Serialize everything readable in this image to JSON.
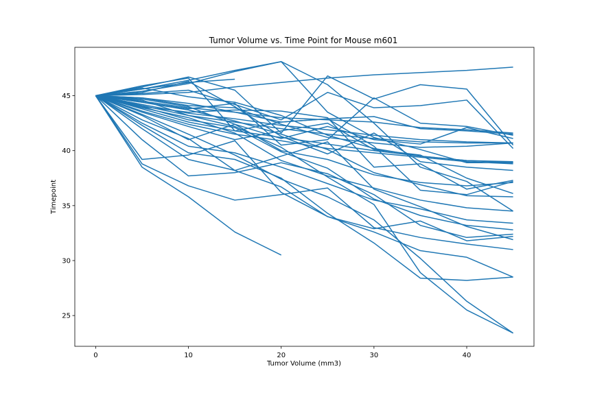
{
  "chart_data": {
    "type": "line",
    "title": "Tumor Volume vs. Time Point for Mouse m601",
    "xlabel": "Tumor Volume (mm3)",
    "ylabel": "Timepoint",
    "xlim": [
      -2.25,
      47.25
    ],
    "ylim": [
      22.2,
      49.4
    ],
    "xticks": [
      0,
      10,
      20,
      30,
      40
    ],
    "yticks": [
      25,
      30,
      35,
      40,
      45
    ],
    "grid": false,
    "legend": "none",
    "line_color": "#1f77b4",
    "series": [
      {
        "x": [
          0,
          5,
          10,
          15,
          20,
          25,
          30,
          35,
          40,
          45
        ],
        "y": [
          45,
          45.6,
          46.4,
          47.3,
          48.1,
          43.5,
          41.2,
          40.1,
          38.9,
          38.9
        ]
      },
      {
        "x": [
          0,
          5,
          10,
          15,
          20,
          25,
          30,
          35,
          40,
          45
        ],
        "y": [
          45,
          45.4,
          46.1,
          47.2,
          48.1,
          46.0,
          42.5,
          38.5,
          37.2,
          34.5
        ]
      },
      {
        "x": [
          0,
          5,
          10,
          15,
          20,
          25,
          30,
          35,
          40,
          45
        ],
        "y": [
          45,
          45.1,
          45.3,
          45.8,
          46.2,
          46.6,
          46.9,
          47.1,
          47.3,
          47.6
        ]
      },
      {
        "x": [
          0,
          5,
          10,
          15,
          20,
          25,
          30,
          35,
          40,
          45
        ],
        "y": [
          45,
          45.8,
          46.7,
          45.5,
          41.6,
          46.8,
          44.7,
          46.0,
          45.6,
          40.5
        ]
      },
      {
        "x": [
          0,
          5,
          10,
          15
        ],
        "y": [
          45,
          45.6,
          46.2,
          46.5
        ]
      },
      {
        "x": [
          0,
          5,
          10,
          15,
          20,
          25,
          30,
          35,
          40,
          45
        ],
        "y": [
          45,
          45.2,
          45.5,
          44.2,
          42.8,
          45.3,
          43.9,
          44.1,
          44.6,
          40.2
        ]
      },
      {
        "x": [
          0,
          5,
          10,
          15,
          20,
          25,
          30,
          35,
          40,
          45
        ],
        "y": [
          45,
          44.8,
          44.3,
          43.5,
          42.6,
          42.9,
          43.1,
          42.0,
          41.8,
          41.5
        ]
      },
      {
        "x": [
          0,
          5,
          10,
          15,
          20,
          25,
          30,
          35,
          40,
          45
        ],
        "y": [
          45,
          44.5,
          43.9,
          43.5,
          43.0,
          42.8,
          42.6,
          42.1,
          41.9,
          41.6
        ]
      },
      {
        "x": [
          0,
          5,
          10,
          15,
          20,
          25,
          30,
          35,
          40,
          45
        ],
        "y": [
          45,
          44.2,
          43.4,
          42.9,
          42.3,
          41.9,
          41.4,
          41.0,
          40.8,
          40.7
        ]
      },
      {
        "x": [
          0,
          5,
          10,
          15,
          20,
          25,
          30,
          35,
          40,
          45
        ],
        "y": [
          45,
          44.1,
          43.2,
          42.6,
          42.0,
          41.5,
          41.1,
          40.8,
          40.7,
          40.7
        ]
      },
      {
        "x": [
          0,
          5,
          10,
          15,
          20,
          25,
          30,
          35,
          40,
          45
        ],
        "y": [
          45,
          43.8,
          42.6,
          41.8,
          41.2,
          40.6,
          40.0,
          39.5,
          39.1,
          38.9
        ]
      },
      {
        "x": [
          0,
          5,
          10,
          15,
          20,
          25,
          30,
          35,
          40,
          45
        ],
        "y": [
          45,
          43.6,
          42.4,
          41.5,
          40.9,
          40.2,
          39.8,
          39.4,
          39.0,
          38.8
        ]
      },
      {
        "x": [
          0,
          5,
          10,
          15,
          20,
          25,
          30,
          35,
          40,
          45
        ],
        "y": [
          45,
          44.4,
          43.8,
          44.3,
          40.5,
          41.0,
          44.8,
          42.5,
          42.2,
          41.4
        ]
      },
      {
        "x": [
          0,
          5,
          10,
          15,
          20,
          25,
          30,
          35,
          40,
          45
        ],
        "y": [
          45,
          44.0,
          43.5,
          43.7,
          43.6,
          43.0,
          38.5,
          38.8,
          36.5,
          37.3
        ]
      },
      {
        "x": [
          0,
          5,
          10,
          15,
          20,
          25,
          30,
          35,
          40,
          45
        ],
        "y": [
          45,
          43.2,
          41.0,
          42.4,
          40.0,
          39.2,
          37.8,
          37.1,
          36.8,
          37.1
        ]
      },
      {
        "x": [
          0,
          5,
          10,
          15,
          20,
          25,
          30,
          35,
          40,
          45
        ],
        "y": [
          45,
          43.5,
          42.2,
          41.0,
          41.8,
          42.5,
          40.1,
          39.6,
          37.5,
          36.1
        ]
      },
      {
        "x": [
          0,
          5,
          10,
          15,
          20,
          25,
          30,
          35,
          40,
          45
        ],
        "y": [
          45,
          42.5,
          40.4,
          39.8,
          38.5,
          37.0,
          35.5,
          34.7,
          33.7,
          33.4
        ]
      },
      {
        "x": [
          0,
          5,
          10,
          15,
          20,
          25,
          30,
          35,
          40,
          45
        ],
        "y": [
          45,
          42.0,
          39.2,
          38.2,
          39.5,
          40.8,
          36.5,
          34.9,
          33.1,
          31.9
        ]
      },
      {
        "x": [
          0,
          5,
          10,
          15,
          20,
          25,
          30,
          35,
          40,
          45
        ],
        "y": [
          45,
          41.0,
          37.7,
          38.0,
          38.9,
          37.9,
          36.0,
          33.2,
          32.1,
          32.4
        ]
      },
      {
        "x": [
          0,
          5,
          10,
          15,
          20,
          25,
          30,
          35,
          40,
          45
        ],
        "y": [
          45,
          39.2,
          39.6,
          40.9,
          36.2,
          34.0,
          32.9,
          33.6,
          31.8,
          32.2
        ]
      },
      {
        "x": [
          0,
          5,
          10,
          15,
          20,
          25,
          30,
          35,
          40,
          45
        ],
        "y": [
          45,
          38.8,
          36.8,
          35.5,
          36.0,
          36.6,
          33.0,
          32.1,
          31.5,
          31.0
        ]
      },
      {
        "x": [
          0,
          5,
          10,
          15,
          20
        ],
        "y": [
          45,
          38.5,
          35.8,
          32.6,
          30.5
        ]
      },
      {
        "x": [
          0,
          5,
          10,
          15,
          20,
          25,
          30,
          35,
          40,
          45
        ],
        "y": [
          45,
          42.8,
          41.1,
          38.2,
          36.7,
          34.0,
          32.6,
          30.9,
          30.3,
          28.5
        ]
      },
      {
        "x": [
          0,
          5,
          10,
          15,
          20,
          25,
          30,
          35,
          40,
          45
        ],
        "y": [
          45,
          42.3,
          39.8,
          39.2,
          37.5,
          34.3,
          31.6,
          28.4,
          28.2,
          28.5
        ]
      },
      {
        "x": [
          0,
          5,
          10,
          15,
          20,
          25,
          30,
          35,
          40,
          45
        ],
        "y": [
          45,
          43.3,
          41.5,
          39.6,
          37.4,
          35.8,
          33.7,
          30.2,
          26.3,
          23.4
        ]
      },
      {
        "x": [
          0,
          5,
          10,
          15,
          20,
          25,
          30,
          35,
          40,
          45
        ],
        "y": [
          45,
          44.6,
          43.2,
          42.2,
          40.3,
          37.6,
          35.1,
          28.9,
          25.5,
          23.4
        ]
      },
      {
        "x": [
          0,
          5,
          10,
          15,
          20,
          25,
          30,
          35,
          40,
          45
        ],
        "y": [
          45,
          44.0,
          42.8,
          42.1,
          39.9,
          38.4,
          35.6,
          34.1,
          33.2,
          32.8
        ]
      },
      {
        "x": [
          0,
          5,
          10,
          15,
          20,
          25,
          30,
          35,
          40,
          45
        ],
        "y": [
          45,
          43.9,
          43.0,
          41.6,
          39.1,
          37.7,
          36.6,
          35.5,
          34.8,
          34.5
        ]
      },
      {
        "x": [
          0,
          5,
          10,
          15,
          20,
          25,
          30,
          35,
          40,
          45
        ],
        "y": [
          45,
          44.7,
          44.0,
          42.4,
          41.1,
          42.2,
          41.0,
          40.6,
          42.1,
          41.1
        ]
      },
      {
        "x": [
          0,
          5,
          10,
          15,
          20,
          25,
          30,
          35,
          40,
          45
        ],
        "y": [
          45,
          44.4,
          43.7,
          42.7,
          41.5,
          40.1,
          38.0,
          36.9,
          35.9,
          35.8
        ]
      },
      {
        "x": [
          0,
          5,
          10,
          15,
          20,
          25,
          30,
          35,
          40,
          45
        ],
        "y": [
          45,
          45.7,
          44.9,
          44.4,
          43.2,
          41.4,
          40.2,
          39.5,
          39.1,
          39.0
        ]
      },
      {
        "x": [
          0,
          5,
          10,
          15,
          20,
          25,
          30,
          35,
          40,
          45
        ],
        "y": [
          45,
          45.9,
          46.6,
          41.8,
          42.6,
          42.9,
          40.4,
          36.4,
          36.0,
          37.2
        ]
      },
      {
        "x": [
          0,
          5,
          10,
          15,
          20,
          25,
          30,
          35,
          40,
          45
        ],
        "y": [
          45,
          45.3,
          46.3,
          44.0,
          41.3,
          39.7,
          41.6,
          39.0,
          38.5,
          38.2
        ]
      },
      {
        "x": [
          0,
          5,
          10,
          15,
          20,
          25,
          30,
          35,
          40,
          45
        ],
        "y": [
          45,
          44.8,
          44.1,
          43.9,
          42.4,
          41.2,
          40.7,
          40.3,
          40.4,
          40.7
        ]
      }
    ]
  }
}
